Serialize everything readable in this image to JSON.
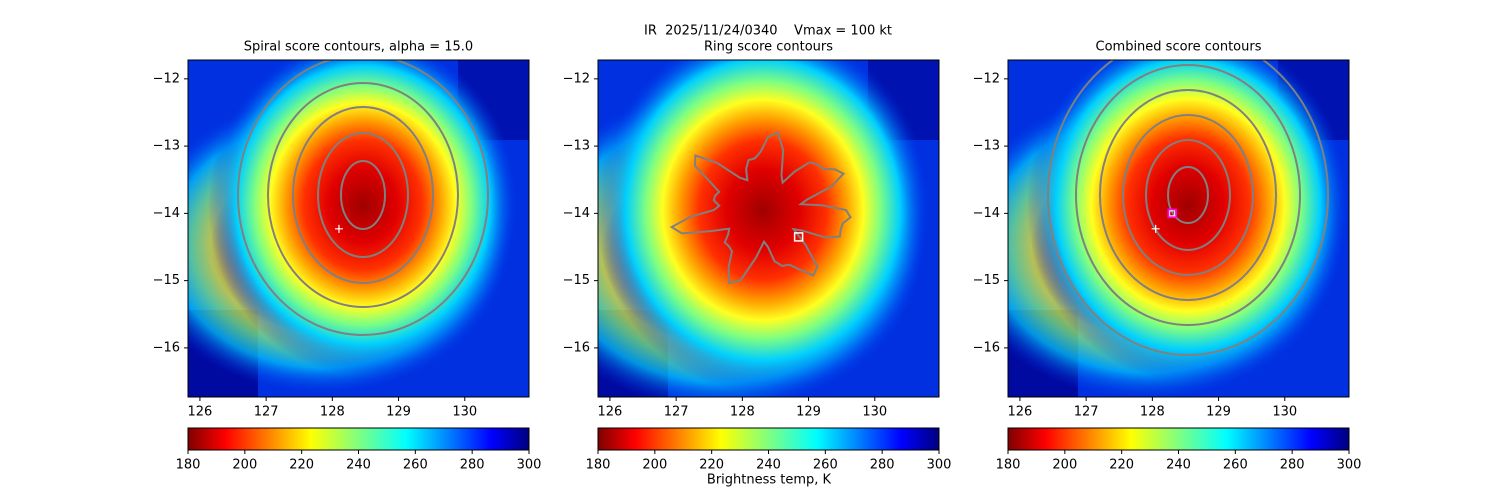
{
  "title": "IR  2025/11/24/0340    Vmax = 100 kt",
  "colorbar_label": "Brightness temp, K",
  "chart_data": [
    {
      "type": "heatmap",
      "title": "Spiral score contours, alpha = 15.0",
      "colormap": "jet_r",
      "xlim": [
        125.82,
        130.97
      ],
      "xticks": [
        126,
        127,
        128,
        129,
        130
      ],
      "ylim": [
        -16.73,
        -11.72
      ],
      "yticks": [
        {
          "value": -12,
          "label": "−12"
        },
        {
          "value": -13,
          "label": "−13"
        },
        {
          "value": -14,
          "label": "−14"
        },
        {
          "value": -15,
          "label": "−15"
        },
        {
          "value": -16,
          "label": "−16"
        }
      ],
      "clim": [
        180,
        300
      ],
      "cticks": [
        180,
        200,
        220,
        240,
        260,
        280,
        300
      ],
      "markers": [
        {
          "shape": "cross",
          "color": "#ffffff",
          "x": 128.1,
          "y": -14.23
        }
      ]
    },
    {
      "type": "heatmap",
      "title": "Ring score contours",
      "colormap": "jet_r",
      "xlim": [
        125.82,
        130.97
      ],
      "xticks": [
        126,
        127,
        128,
        129,
        130
      ],
      "ylim": [
        -16.73,
        -11.72
      ],
      "yticks": [
        {
          "value": -12,
          "label": "−12"
        },
        {
          "value": -13,
          "label": "−13"
        },
        {
          "value": -14,
          "label": "−14"
        },
        {
          "value": -15,
          "label": "−15"
        },
        {
          "value": -16,
          "label": "−16"
        }
      ],
      "clim": [
        180,
        300
      ],
      "cticks": [
        180,
        200,
        220,
        240,
        260,
        280,
        300
      ],
      "markers": [
        {
          "shape": "square",
          "color": "#ffffff",
          "x": 128.85,
          "y": -14.35
        }
      ]
    },
    {
      "type": "heatmap",
      "title": "Combined score contours",
      "colormap": "jet_r",
      "xlim": [
        125.82,
        130.97
      ],
      "xticks": [
        126,
        127,
        128,
        129,
        130
      ],
      "ylim": [
        -16.73,
        -11.72
      ],
      "yticks": [
        {
          "value": -12,
          "label": "−12"
        },
        {
          "value": -13,
          "label": "−13"
        },
        {
          "value": -14,
          "label": "−14"
        },
        {
          "value": -15,
          "label": "−15"
        },
        {
          "value": -16,
          "label": "−16"
        }
      ],
      "clim": [
        180,
        300
      ],
      "cticks": [
        180,
        200,
        220,
        240,
        260,
        280,
        300
      ],
      "markers": [
        {
          "shape": "cross",
          "color": "#ffffff",
          "x": 128.05,
          "y": -14.23
        },
        {
          "shape": "square",
          "color": "#ff00ff",
          "x": 128.3,
          "y": -14.0
        }
      ]
    }
  ]
}
